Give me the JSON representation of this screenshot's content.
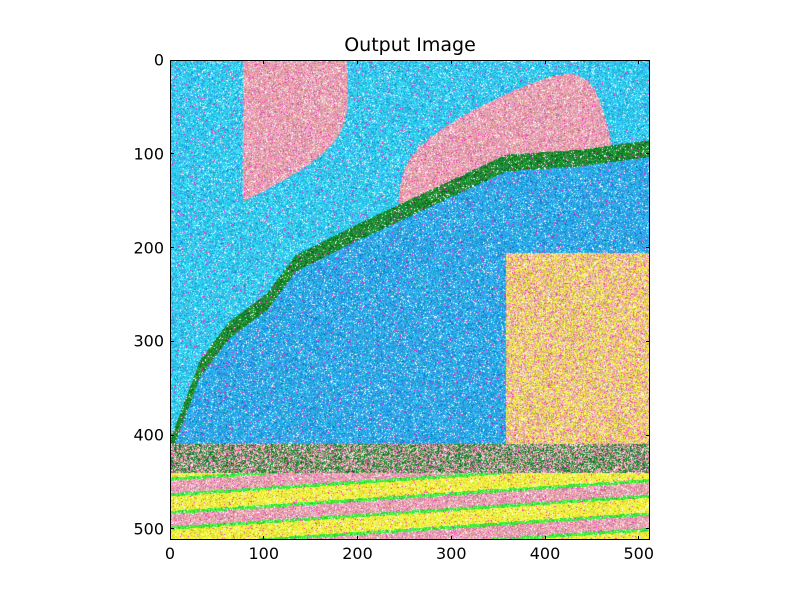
{
  "figure": {
    "title": "Output Image"
  },
  "axes": {
    "x_ticks": [
      "0",
      "100",
      "200",
      "300",
      "400",
      "500"
    ],
    "y_ticks": [
      "0",
      "100",
      "200",
      "300",
      "400",
      "500"
    ],
    "x_tick_values": [
      0,
      100,
      200,
      300,
      400,
      500
    ],
    "y_tick_values": [
      0,
      100,
      200,
      300,
      400,
      500
    ],
    "xlim": [
      0,
      512
    ],
    "ylim": [
      512,
      0
    ]
  },
  "image": {
    "description_colors": {
      "sky_pink": "#e8a0b0",
      "sky_cyan": "#30c8f0",
      "rock_blue": "#2aa8e8",
      "ridge_green": "#1a8a30",
      "meadow_yellow": "#f0f040",
      "meadow_lime": "#40f040"
    }
  }
}
